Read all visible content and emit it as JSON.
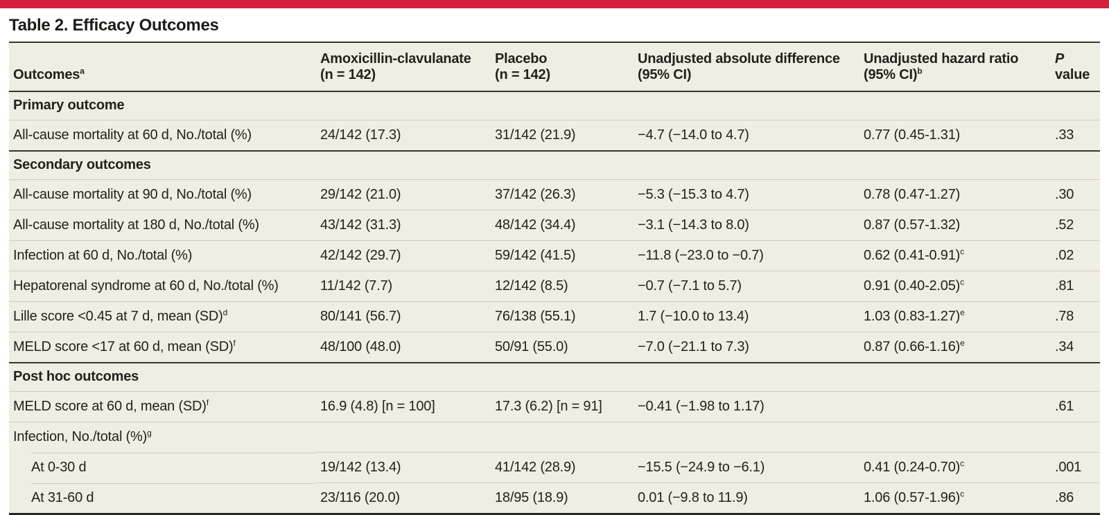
{
  "accent_color": "#d41e3c",
  "title": "Table 2. Efficacy Outcomes",
  "table": {
    "columns": [
      {
        "id": "outcomes",
        "lines": [
          "Outcomes"
        ],
        "sup": "a"
      },
      {
        "id": "amoxicillin-clavulanate",
        "lines": [
          "Amoxicillin-clavulanate",
          "(n = 142)"
        ]
      },
      {
        "id": "placebo",
        "lines": [
          "Placebo",
          "(n = 142)"
        ]
      },
      {
        "id": "absolute-difference",
        "lines": [
          "Unadjusted absolute difference",
          "(95% CI)"
        ]
      },
      {
        "id": "hazard-ratio",
        "lines": [
          "Unadjusted hazard ratio",
          "(95% CI)"
        ],
        "sup": "b"
      },
      {
        "id": "p-value",
        "italic_lead": "P",
        "lines": [
          "value"
        ]
      }
    ],
    "rows": [
      {
        "type": "section",
        "label": "Primary outcome"
      },
      {
        "type": "data",
        "label": "All-cause mortality at 60 d, No./total (%)",
        "cells": [
          {
            "t": "24/142 (17.3)"
          },
          {
            "t": "31/142 (21.9)"
          },
          {
            "t": "−4.7 (−14.0 to 4.7)"
          },
          {
            "t": "0.77 (0.45-1.31)"
          },
          {
            "t": ".33"
          }
        ]
      },
      {
        "type": "section",
        "label": "Secondary outcomes"
      },
      {
        "type": "data",
        "label": "All-cause mortality at 90 d, No./total (%)",
        "cells": [
          {
            "t": "29/142 (21.0)"
          },
          {
            "t": "37/142 (26.3)"
          },
          {
            "t": "−5.3 (−15.3 to 4.7)"
          },
          {
            "t": "0.78 (0.47-1.27)"
          },
          {
            "t": ".30"
          }
        ]
      },
      {
        "type": "data",
        "label": "All-cause mortality at 180 d, No./total (%)",
        "cells": [
          {
            "t": "43/142 (31.3)"
          },
          {
            "t": "48/142 (34.4)"
          },
          {
            "t": "−3.1 (−14.3 to 8.0)"
          },
          {
            "t": "0.87 (0.57-1.32)"
          },
          {
            "t": ".52"
          }
        ]
      },
      {
        "type": "data",
        "label": "Infection at 60 d, No./total (%)",
        "cells": [
          {
            "t": "42/142 (29.7)"
          },
          {
            "t": "59/142 (41.5)"
          },
          {
            "t": "−11.8 (−23.0 to −0.7)"
          },
          {
            "t": "0.62 (0.41-0.91)",
            "s": "c"
          },
          {
            "t": ".02"
          }
        ]
      },
      {
        "type": "data",
        "label": "Hepatorenal syndrome at 60 d, No./total (%)",
        "cells": [
          {
            "t": "11/142 (7.7)"
          },
          {
            "t": "12/142 (8.5)"
          },
          {
            "t": "−0.7 (−7.1 to 5.7)"
          },
          {
            "t": "0.91 (0.40-2.05)",
            "s": "c"
          },
          {
            "t": ".81"
          }
        ]
      },
      {
        "type": "data",
        "label": "Lille score <0.45 at 7 d, mean (SD)",
        "sup": "d",
        "cells": [
          {
            "t": "80/141 (56.7)"
          },
          {
            "t": "76/138 (55.1)"
          },
          {
            "t": "1.7 (−10.0 to 13.4)"
          },
          {
            "t": "1.03 (0.83-1.27)",
            "s": "e"
          },
          {
            "t": ".78"
          }
        ]
      },
      {
        "type": "data",
        "label": "MELD score <17 at 60 d, mean (SD)",
        "sup": "f",
        "cells": [
          {
            "t": "48/100 (48.0)"
          },
          {
            "t": "50/91 (55.0)"
          },
          {
            "t": "−7.0 (−21.1 to 7.3)"
          },
          {
            "t": "0.87 (0.66-1.16)",
            "s": "e"
          },
          {
            "t": ".34"
          }
        ]
      },
      {
        "type": "section",
        "label": "Post hoc outcomes"
      },
      {
        "type": "data",
        "label": "MELD score at 60 d, mean (SD)",
        "sup": "f",
        "cells": [
          {
            "t": "16.9 (4.8) [n = 100]"
          },
          {
            "t": "17.3 (6.2) [n = 91]"
          },
          {
            "t": "−0.41 (−1.98 to 1.17)"
          },
          {
            "t": ""
          },
          {
            "t": ".61"
          }
        ]
      },
      {
        "type": "group",
        "label": "Infection, No./total (%)",
        "sup": "g"
      },
      {
        "type": "sub",
        "label": "At 0-30 d",
        "cells": [
          {
            "t": "19/142 (13.4)"
          },
          {
            "t": "41/142 (28.9)"
          },
          {
            "t": "−15.5 (−24.9 to −6.1)"
          },
          {
            "t": "0.41 (0.24-0.70)",
            "s": "c"
          },
          {
            "t": ".001"
          }
        ]
      },
      {
        "type": "sub",
        "label": "At 31-60 d",
        "cells": [
          {
            "t": "23/116 (20.0)"
          },
          {
            "t": "18/95 (18.9)"
          },
          {
            "t": "0.01 (−9.8 to 11.9)"
          },
          {
            "t": "1.06 (0.57-1.96)",
            "s": "c"
          },
          {
            "t": ".86"
          }
        ]
      }
    ]
  }
}
